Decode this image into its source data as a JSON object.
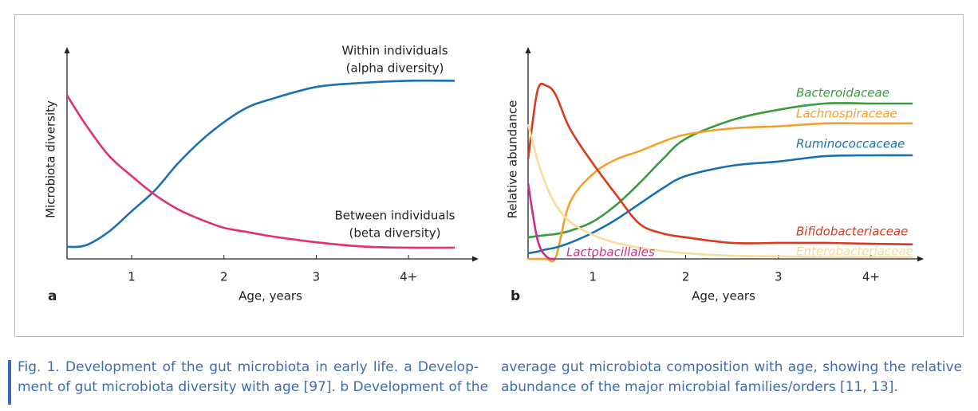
{
  "chart_data": [
    {
      "type": "line",
      "panel": "a",
      "ylabel": "Microbiota diversity",
      "xlabel": "Age, years",
      "x": [
        0.3,
        0.5,
        0.75,
        1,
        1.25,
        1.5,
        1.75,
        2,
        2.25,
        2.5,
        3,
        3.5,
        4,
        4.5
      ],
      "xlim": [
        0.3,
        4.5
      ],
      "xticks": [
        1,
        2,
        3,
        {
          "value": 4,
          "label": "4+"
        }
      ],
      "ylim": [
        0,
        100
      ],
      "series": [
        {
          "name": "Within individuals",
          "subname": "(alpha diversity)",
          "color": "#1d6fb3",
          "values": [
            5.8,
            6.5,
            13,
            23,
            33,
            46,
            57,
            66,
            73,
            77,
            83,
            85,
            86,
            86
          ]
        },
        {
          "name": "Between individuals",
          "subname": "(beta diversity)",
          "color": "#e2306f",
          "values": [
            79,
            65,
            50,
            40,
            31,
            24,
            19,
            15,
            13,
            11,
            8,
            6,
            5.4,
            5.4
          ]
        }
      ]
    },
    {
      "type": "line",
      "panel": "b",
      "ylabel": "Relative abundance",
      "xlabel": "Age, years",
      "x": [
        0.3,
        0.4,
        0.5,
        0.6,
        0.75,
        1,
        1.25,
        1.5,
        1.75,
        2,
        2.5,
        3,
        3.5,
        4,
        4.45
      ],
      "xlim": [
        0.3,
        4.5
      ],
      "xticks": [
        1,
        2,
        3,
        {
          "value": 4,
          "label": "4+"
        }
      ],
      "ylim": [
        0,
        100
      ],
      "series": [
        {
          "name": "Bacteroidaceae",
          "color": "#3a9a3c",
          "values": [
            10.4,
            11,
            11.5,
            12,
            13.5,
            18,
            26,
            36.5,
            48,
            58,
            67,
            72,
            75,
            75,
            75
          ]
        },
        {
          "name": "Lachnospiraceae",
          "color": "#f2a22a",
          "values": [
            0,
            0,
            0,
            1,
            27,
            41,
            48,
            52,
            56.5,
            60,
            63,
            64,
            65.4,
            65.4,
            65.4
          ]
        },
        {
          "name": "Ruminococcaceae",
          "color": "#1a6fae",
          "values": [
            2.7,
            3.5,
            4.6,
            5.5,
            7.7,
            12.7,
            19,
            26.5,
            34,
            40,
            45,
            47,
            49.6,
            50,
            50
          ]
        },
        {
          "name": "Bifidobacteriaceae",
          "color": "#d93a1e",
          "values": [
            48,
            81,
            83.5,
            79,
            63,
            46,
            31,
            17,
            12.3,
            10.4,
            7.7,
            7.7,
            7.7,
            7.3,
            7
          ]
        },
        {
          "name": "Enterobacteriaceae",
          "color": "#f7dc9a",
          "values": [
            65,
            48,
            35,
            26,
            18,
            11.5,
            7.7,
            5.4,
            3.8,
            2.7,
            1.5,
            1.2,
            0.8,
            0.8,
            0.8
          ]
        },
        {
          "name": "Lactobacillales",
          "color": "#cc2d8a",
          "values": [
            36.5,
            9.6,
            1,
            0,
            null,
            null,
            null,
            null,
            null,
            null,
            null,
            null,
            null,
            null,
            null
          ]
        }
      ]
    }
  ],
  "caption": {
    "label": "Fig. 1.",
    "lines": [
      "Development of the gut microbiota in early life. a Develop-",
      "ment of gut microbiota diversity with age [97]. b Development of the",
      "average gut microbiota composition with age, showing the relative",
      "abundance of the major microbial families/orders [11, 13]."
    ]
  }
}
